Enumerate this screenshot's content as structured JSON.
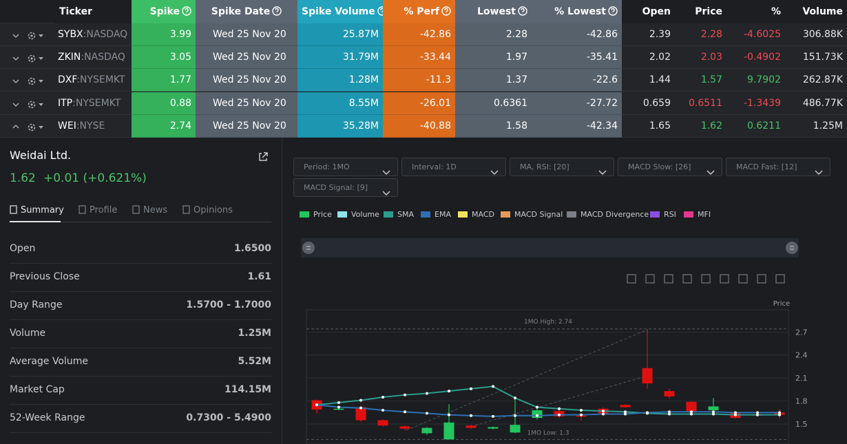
{
  "table": {
    "headers": [
      "Ticker",
      "Spike",
      "Spike Date",
      "Spike Volume",
      "% Perf",
      "Lowest",
      "% Lowest",
      "Open",
      "Price",
      "%",
      "Volume"
    ],
    "rows": [
      {
        "symbol": "SYBX",
        "exchange": ":NASDAQ",
        "cells": [
          "3.99",
          "Wed 25 Nov 20",
          "25.87M",
          "-42.86",
          "2.28",
          "-42.86",
          "2.39",
          "2.28",
          "-4.6025",
          "306.88K"
        ]
      },
      {
        "symbol": "ZKIN",
        "exchange": ":NASDAQ",
        "cells": [
          "3.05",
          "Wed 25 Nov 20",
          "31.79M",
          "-33.44",
          "1.97",
          "-35.41",
          "2.02",
          "2.03",
          "-0.4902",
          "151.73K"
        ]
      },
      {
        "symbol": "DXF",
        "exchange": ":NYSEMKT",
        "cells": [
          "1.77",
          "Wed 25 Nov 20",
          "1.28M",
          "-11.3",
          "1.37",
          "-22.6",
          "1.44",
          "1.57",
          "9.7902",
          "262.87K"
        ]
      },
      {
        "symbol": "ITP",
        "exchange": ":NYSEMKT",
        "cells": [
          "0.88",
          "Wed 25 Nov 20",
          "8.55M",
          "-26.01",
          "0.6361",
          "-27.72",
          "0.659",
          "0.6511",
          "-1.3439",
          "486.77K"
        ]
      },
      {
        "symbol": "WEI",
        "exchange": ":NYSE",
        "cells": [
          "2.74",
          "Wed 25 Nov 20",
          "35.28M",
          "-40.88",
          "1.58",
          "-42.34",
          "1.65",
          "1.62",
          "0.6211",
          "1.25M"
        ]
      }
    ]
  },
  "detail": {
    "name": "Weidai Ltd.",
    "price": "1.62",
    "change": "+0.01 (+0.621%)",
    "tabs": [
      "Summary",
      "Profile",
      "News",
      "Opinions"
    ],
    "stats": [
      {
        "label": "Open",
        "value": "1.6500"
      },
      {
        "label": "Previous Close",
        "value": "1.61"
      },
      {
        "label": "Day Range",
        "value": "1.5700 - 1.7000"
      },
      {
        "label": "Volume",
        "value": "1.25M"
      },
      {
        "label": "Average Volume",
        "value": "5.52M"
      },
      {
        "label": "Market Cap",
        "value": "114.15M"
      },
      {
        "label": "52-Week Range",
        "value": "0.7300 - 5.4900"
      }
    ]
  },
  "controls": [
    "Period: 1MO",
    "Interval: 1D",
    "MA, RSI: [20]",
    "MACD Slow: [26]",
    "MACD Fast: [12]",
    "MACD Signal: [9]"
  ],
  "legend": [
    {
      "name": "Price",
      "color": "#22c55e"
    },
    {
      "name": "Volume",
      "color": "#8ee3ea"
    },
    {
      "name": "SMA",
      "color": "#2e9c8f"
    },
    {
      "name": "EMA",
      "color": "#2f6fb5"
    },
    {
      "name": "MACD",
      "color": "#f2e35a"
    },
    {
      "name": "MACD Signal",
      "color": "#e59a57"
    },
    {
      "name": "MACD Divergence",
      "color": "#7b8088"
    },
    {
      "name": "RSI",
      "color": "#8a4fe0"
    },
    {
      "name": "MFI",
      "color": "#e0398e"
    }
  ],
  "chart": {
    "type": "candlestick",
    "axis_label": "Price",
    "high_label": "1MO High: 2.74",
    "low_label": "1MO Low: 1.3",
    "high": 2.74,
    "low": 1.3,
    "ylim": [
      1.24,
      2.99
    ],
    "yticks": [
      1.5,
      1.8,
      2.1,
      2.4,
      2.7
    ],
    "up_color": "#22c55e",
    "down_color": "#e01010",
    "candles": {
      "open": [
        1.81,
        1.69,
        1.72,
        1.55,
        1.47,
        1.38,
        1.3,
        1.48,
        1.44,
        1.39,
        1.58,
        1.67,
        1.61,
        1.7,
        1.75,
        2.23,
        1.93,
        1.79,
        1.68,
        1.65,
        1.63,
        1.65
      ],
      "close": [
        1.69,
        1.7,
        1.55,
        1.48,
        1.44,
        1.45,
        1.52,
        1.45,
        1.46,
        1.49,
        1.68,
        1.6,
        1.6,
        1.64,
        1.72,
        2.03,
        1.86,
        1.65,
        1.73,
        1.58,
        1.61,
        1.62
      ],
      "high": [
        1.82,
        1.71,
        1.74,
        1.56,
        1.48,
        1.46,
        1.76,
        1.49,
        1.47,
        1.83,
        1.72,
        1.69,
        1.62,
        1.72,
        1.76,
        2.74,
        1.96,
        1.8,
        1.84,
        1.66,
        1.64,
        1.7
      ],
      "low": [
        1.64,
        1.68,
        1.53,
        1.47,
        1.42,
        1.36,
        1.3,
        1.44,
        1.43,
        1.38,
        1.56,
        1.58,
        1.54,
        1.63,
        1.71,
        1.96,
        1.83,
        1.63,
        1.67,
        1.57,
        1.6,
        1.57
      ]
    },
    "sma": [
      1.75,
      1.78,
      1.81,
      1.85,
      1.88,
      1.9,
      1.93,
      1.96,
      1.99,
      1.84,
      1.72,
      1.7,
      1.68,
      1.67,
      1.66,
      1.64,
      1.63,
      1.63,
      1.63,
      1.62,
      1.62,
      1.62
    ],
    "ema": [
      1.75,
      1.72,
      1.71,
      1.68,
      1.66,
      1.64,
      1.62,
      1.61,
      1.6,
      1.61,
      1.61,
      1.62,
      1.62,
      1.63,
      1.63,
      1.65,
      1.66,
      1.66,
      1.66,
      1.65,
      1.65,
      1.65
    ]
  }
}
